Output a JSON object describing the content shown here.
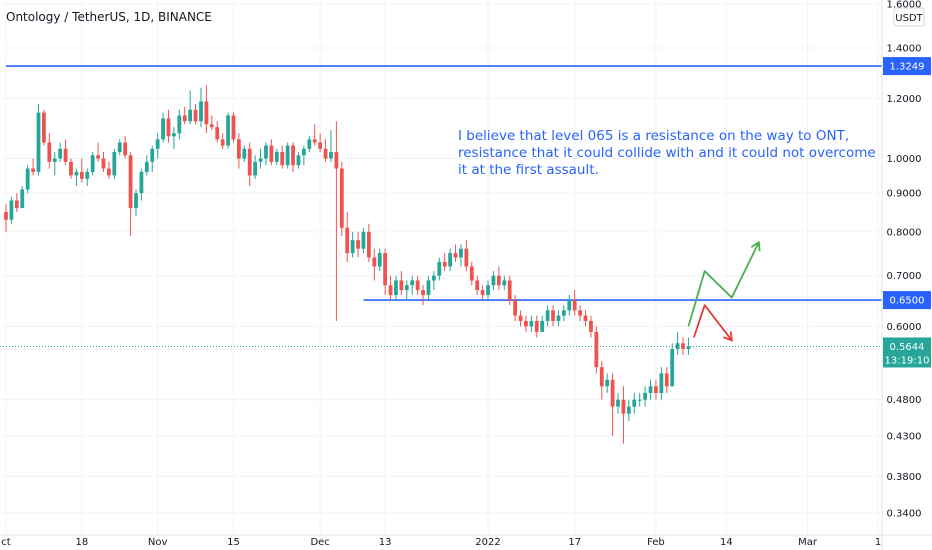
{
  "header": {
    "symbol_title": "Ontology / TetherUS, 1D, BINANCE"
  },
  "annotation": {
    "lines": [
      "I believe that level 065 is a resistance on the way to ONT,",
      "resistance that it could collide with and it could not overcome",
      "it at the first assault."
    ]
  },
  "chart_data": {
    "type": "candlestick",
    "y_axis": {
      "scale": "log",
      "unit": "USDT",
      "tick_labels": [
        "1.6000",
        "1.4000",
        "1.2000",
        "1.0000",
        "0.9000",
        "0.8000",
        "0.7000",
        "0.6000",
        "0.4800",
        "0.4300",
        "0.3800",
        "0.3400"
      ],
      "tick_values": [
        1.6,
        1.4,
        1.2,
        1.0,
        0.9,
        0.8,
        0.7,
        0.6,
        0.48,
        0.43,
        0.38,
        0.34
      ],
      "range": [
        0.318,
        1.62
      ]
    },
    "x_axis": {
      "tick_labels": [
        "ct",
        "18",
        "Nov",
        "15",
        "Dec",
        "13",
        "2022",
        "17",
        "Feb",
        "14",
        "Mar",
        "1"
      ],
      "tick_dates": [
        "2021-10-04",
        "2021-10-18",
        "2021-11-01",
        "2021-11-15",
        "2021-12-01",
        "2021-12-13",
        "2022-01-01",
        "2022-01-17",
        "2022-02-01",
        "2022-02-14",
        "2022-03-01",
        "2022-03-14"
      ]
    },
    "levels": [
      {
        "value": 1.3249,
        "label": "1.3249",
        "color": "#2962ff",
        "from": "2021-10-04",
        "to": "2022-03-14"
      },
      {
        "value": 0.65,
        "label": "0.6500",
        "color": "#2962ff",
        "from": "2021-12-09",
        "to": "2022-03-14"
      }
    ],
    "current_price": {
      "value": 0.5644,
      "label": "0.5644",
      "countdown": "13:19:10",
      "color": "#26a69a"
    },
    "colors": {
      "up": "#26a69a",
      "down": "#ef5350",
      "level": "#2962ff"
    },
    "projections": [
      {
        "color": "#4caf50",
        "points": [
          [
            "2022-02-07",
            0.6
          ],
          [
            "2022-02-10",
            0.71
          ],
          [
            "2022-02-15",
            0.655
          ],
          [
            "2022-02-20",
            0.775
          ]
        ]
      },
      {
        "color": "#e53935",
        "points": [
          [
            "2022-02-08",
            0.58
          ],
          [
            "2022-02-10",
            0.64
          ],
          [
            "2022-02-15",
            0.575
          ]
        ]
      }
    ],
    "candles": [
      [
        "2021-10-04",
        0.85,
        0.87,
        0.8,
        0.83
      ],
      [
        "2021-10-05",
        0.83,
        0.89,
        0.82,
        0.88
      ],
      [
        "2021-10-06",
        0.88,
        0.9,
        0.85,
        0.86
      ],
      [
        "2021-10-07",
        0.86,
        0.92,
        0.86,
        0.91
      ],
      [
        "2021-10-08",
        0.91,
        0.98,
        0.9,
        0.97
      ],
      [
        "2021-10-09",
        0.97,
        1.0,
        0.95,
        0.96
      ],
      [
        "2021-10-10",
        0.96,
        1.18,
        0.95,
        1.15
      ],
      [
        "2021-10-11",
        1.15,
        1.16,
        1.04,
        1.05
      ],
      [
        "2021-10-12",
        1.05,
        1.08,
        0.97,
        0.99
      ],
      [
        "2021-10-13",
        0.99,
        1.02,
        0.95,
        1.0
      ],
      [
        "2021-10-14",
        1.0,
        1.05,
        0.99,
        1.03
      ],
      [
        "2021-10-15",
        1.03,
        1.06,
        0.98,
        0.99
      ],
      [
        "2021-10-16",
        0.99,
        1.0,
        0.94,
        0.95
      ],
      [
        "2021-10-17",
        0.95,
        0.97,
        0.92,
        0.96
      ],
      [
        "2021-10-18",
        0.96,
        1.0,
        0.93,
        0.94
      ],
      [
        "2021-10-19",
        0.94,
        0.97,
        0.92,
        0.96
      ],
      [
        "2021-10-20",
        0.96,
        1.02,
        0.95,
        1.01
      ],
      [
        "2021-10-21",
        1.01,
        1.05,
        0.99,
        1.0
      ],
      [
        "2021-10-22",
        1.0,
        1.02,
        0.96,
        0.97
      ],
      [
        "2021-10-23",
        0.97,
        0.99,
        0.94,
        0.95
      ],
      [
        "2021-10-24",
        0.95,
        1.03,
        0.94,
        1.02
      ],
      [
        "2021-10-25",
        1.02,
        1.06,
        1.01,
        1.05
      ],
      [
        "2021-10-26",
        1.05,
        1.07,
        1.0,
        1.01
      ],
      [
        "2021-10-27",
        1.01,
        1.02,
        0.79,
        0.86
      ],
      [
        "2021-10-28",
        0.86,
        0.91,
        0.84,
        0.9
      ],
      [
        "2021-10-29",
        0.9,
        0.97,
        0.88,
        0.96
      ],
      [
        "2021-10-30",
        0.96,
        1.01,
        0.95,
        0.99
      ],
      [
        "2021-10-31",
        0.99,
        1.04,
        0.96,
        1.03
      ],
      [
        "2021-11-01",
        1.03,
        1.08,
        1.0,
        1.06
      ],
      [
        "2021-11-02",
        1.06,
        1.15,
        1.05,
        1.13
      ],
      [
        "2021-11-03",
        1.13,
        1.16,
        1.05,
        1.07
      ],
      [
        "2021-11-04",
        1.07,
        1.1,
        1.03,
        1.08
      ],
      [
        "2021-11-05",
        1.08,
        1.16,
        1.06,
        1.14
      ],
      [
        "2021-11-06",
        1.14,
        1.17,
        1.11,
        1.12
      ],
      [
        "2021-11-07",
        1.12,
        1.23,
        1.11,
        1.16
      ],
      [
        "2021-11-08",
        1.16,
        1.18,
        1.11,
        1.12
      ],
      [
        "2021-11-09",
        1.12,
        1.24,
        1.1,
        1.19
      ],
      [
        "2021-11-10",
        1.19,
        1.25,
        1.08,
        1.11
      ],
      [
        "2021-11-11",
        1.11,
        1.14,
        1.09,
        1.1
      ],
      [
        "2021-11-12",
        1.1,
        1.12,
        1.05,
        1.06
      ],
      [
        "2021-11-13",
        1.06,
        1.08,
        1.03,
        1.04
      ],
      [
        "2021-11-14",
        1.04,
        1.15,
        1.03,
        1.14
      ],
      [
        "2021-11-15",
        1.14,
        1.15,
        1.05,
        1.06
      ],
      [
        "2021-11-16",
        1.06,
        1.08,
        0.97,
        1.0
      ],
      [
        "2021-11-17",
        1.0,
        1.04,
        0.99,
        1.03
      ],
      [
        "2021-11-18",
        1.03,
        1.05,
        0.92,
        0.95
      ],
      [
        "2021-11-19",
        0.95,
        1.01,
        0.94,
        0.99
      ],
      [
        "2021-11-20",
        0.99,
        1.03,
        0.97,
        1.0
      ],
      [
        "2021-11-21",
        1.0,
        1.05,
        0.98,
        1.04
      ],
      [
        "2021-11-22",
        1.04,
        1.06,
        0.98,
        0.99
      ],
      [
        "2021-11-23",
        0.99,
        1.03,
        0.98,
        1.02
      ],
      [
        "2021-11-24",
        1.02,
        1.04,
        0.97,
        0.98
      ],
      [
        "2021-11-25",
        0.98,
        1.05,
        0.97,
        1.04
      ],
      [
        "2021-11-26",
        1.04,
        1.05,
        0.96,
        0.98
      ],
      [
        "2021-11-27",
        0.98,
        1.02,
        0.97,
        1.01
      ],
      [
        "2021-11-28",
        1.01,
        1.04,
        0.98,
        1.03
      ],
      [
        "2021-11-29",
        1.03,
        1.07,
        1.02,
        1.06
      ],
      [
        "2021-11-30",
        1.06,
        1.11,
        1.04,
        1.05
      ],
      [
        "2021-12-01",
        1.05,
        1.08,
        1.02,
        1.03
      ],
      [
        "2021-12-02",
        1.03,
        1.06,
        0.99,
        1.0
      ],
      [
        "2021-12-03",
        1.0,
        1.09,
        0.99,
        1.02
      ],
      [
        "2021-12-04",
        1.02,
        1.12,
        0.61,
        0.97
      ],
      [
        "2021-12-05",
        0.97,
        0.99,
        0.79,
        0.81
      ],
      [
        "2021-12-06",
        0.81,
        0.85,
        0.73,
        0.75
      ],
      [
        "2021-12-07",
        0.75,
        0.8,
        0.74,
        0.78
      ],
      [
        "2021-12-08",
        0.78,
        0.8,
        0.74,
        0.76
      ],
      [
        "2021-12-09",
        0.76,
        0.81,
        0.75,
        0.8
      ],
      [
        "2021-12-10",
        0.8,
        0.82,
        0.73,
        0.74
      ],
      [
        "2021-12-11",
        0.74,
        0.76,
        0.69,
        0.72
      ],
      [
        "2021-12-12",
        0.72,
        0.76,
        0.71,
        0.75
      ],
      [
        "2021-12-13",
        0.75,
        0.76,
        0.66,
        0.68
      ],
      [
        "2021-12-14",
        0.68,
        0.7,
        0.65,
        0.66
      ],
      [
        "2021-12-15",
        0.66,
        0.7,
        0.65,
        0.69
      ],
      [
        "2021-12-16",
        0.69,
        0.71,
        0.66,
        0.67
      ],
      [
        "2021-12-17",
        0.67,
        0.69,
        0.65,
        0.68
      ],
      [
        "2021-12-18",
        0.68,
        0.7,
        0.66,
        0.69
      ],
      [
        "2021-12-19",
        0.69,
        0.7,
        0.66,
        0.67
      ],
      [
        "2021-12-20",
        0.67,
        0.68,
        0.64,
        0.66
      ],
      [
        "2021-12-21",
        0.66,
        0.7,
        0.65,
        0.69
      ],
      [
        "2021-12-22",
        0.69,
        0.71,
        0.67,
        0.7
      ],
      [
        "2021-12-23",
        0.7,
        0.74,
        0.69,
        0.73
      ],
      [
        "2021-12-24",
        0.73,
        0.75,
        0.71,
        0.72
      ],
      [
        "2021-12-25",
        0.72,
        0.76,
        0.71,
        0.75
      ],
      [
        "2021-12-26",
        0.75,
        0.77,
        0.73,
        0.74
      ],
      [
        "2021-12-27",
        0.74,
        0.77,
        0.72,
        0.76
      ],
      [
        "2021-12-28",
        0.76,
        0.78,
        0.71,
        0.72
      ],
      [
        "2021-12-29",
        0.72,
        0.73,
        0.68,
        0.69
      ],
      [
        "2021-12-30",
        0.69,
        0.7,
        0.66,
        0.67
      ],
      [
        "2021-12-31",
        0.67,
        0.68,
        0.65,
        0.66
      ],
      [
        "2022-01-01",
        0.66,
        0.69,
        0.65,
        0.68
      ],
      [
        "2022-01-02",
        0.68,
        0.71,
        0.67,
        0.7
      ],
      [
        "2022-01-03",
        0.7,
        0.72,
        0.67,
        0.68
      ],
      [
        "2022-01-04",
        0.68,
        0.7,
        0.67,
        0.69
      ],
      [
        "2022-01-05",
        0.69,
        0.7,
        0.64,
        0.65
      ],
      [
        "2022-01-06",
        0.65,
        0.66,
        0.61,
        0.62
      ],
      [
        "2022-01-07",
        0.62,
        0.63,
        0.6,
        0.61
      ],
      [
        "2022-01-08",
        0.61,
        0.62,
        0.59,
        0.6
      ],
      [
        "2022-01-09",
        0.6,
        0.62,
        0.59,
        0.61
      ],
      [
        "2022-01-10",
        0.61,
        0.62,
        0.58,
        0.59
      ],
      [
        "2022-01-11",
        0.59,
        0.62,
        0.59,
        0.61
      ],
      [
        "2022-01-12",
        0.61,
        0.64,
        0.6,
        0.63
      ],
      [
        "2022-01-13",
        0.63,
        0.64,
        0.6,
        0.61
      ],
      [
        "2022-01-14",
        0.61,
        0.63,
        0.6,
        0.62
      ],
      [
        "2022-01-15",
        0.62,
        0.64,
        0.61,
        0.63
      ],
      [
        "2022-01-16",
        0.63,
        0.66,
        0.62,
        0.65
      ],
      [
        "2022-01-17",
        0.65,
        0.67,
        0.62,
        0.63
      ],
      [
        "2022-01-18",
        0.63,
        0.64,
        0.61,
        0.62
      ],
      [
        "2022-01-19",
        0.62,
        0.63,
        0.6,
        0.61
      ],
      [
        "2022-01-20",
        0.61,
        0.62,
        0.58,
        0.59
      ],
      [
        "2022-01-21",
        0.59,
        0.6,
        0.52,
        0.53
      ],
      [
        "2022-01-22",
        0.53,
        0.54,
        0.48,
        0.5
      ],
      [
        "2022-01-23",
        0.5,
        0.52,
        0.49,
        0.51
      ],
      [
        "2022-01-24",
        0.51,
        0.52,
        0.43,
        0.47
      ],
      [
        "2022-01-25",
        0.47,
        0.49,
        0.46,
        0.48
      ],
      [
        "2022-01-26",
        0.48,
        0.5,
        0.42,
        0.46
      ],
      [
        "2022-01-27",
        0.46,
        0.48,
        0.45,
        0.47
      ],
      [
        "2022-01-28",
        0.47,
        0.49,
        0.46,
        0.48
      ],
      [
        "2022-01-29",
        0.48,
        0.49,
        0.47,
        0.48
      ],
      [
        "2022-01-30",
        0.48,
        0.5,
        0.47,
        0.49
      ],
      [
        "2022-01-31",
        0.49,
        0.51,
        0.48,
        0.5
      ],
      [
        "2022-02-01",
        0.5,
        0.51,
        0.48,
        0.49
      ],
      [
        "2022-02-02",
        0.49,
        0.53,
        0.48,
        0.52
      ],
      [
        "2022-02-03",
        0.52,
        0.53,
        0.49,
        0.5
      ],
      [
        "2022-02-04",
        0.5,
        0.57,
        0.5,
        0.56
      ],
      [
        "2022-02-05",
        0.56,
        0.59,
        0.55,
        0.57
      ],
      [
        "2022-02-06",
        0.57,
        0.58,
        0.55,
        0.56
      ],
      [
        "2022-02-07",
        0.56,
        0.58,
        0.55,
        0.5644
      ]
    ]
  }
}
